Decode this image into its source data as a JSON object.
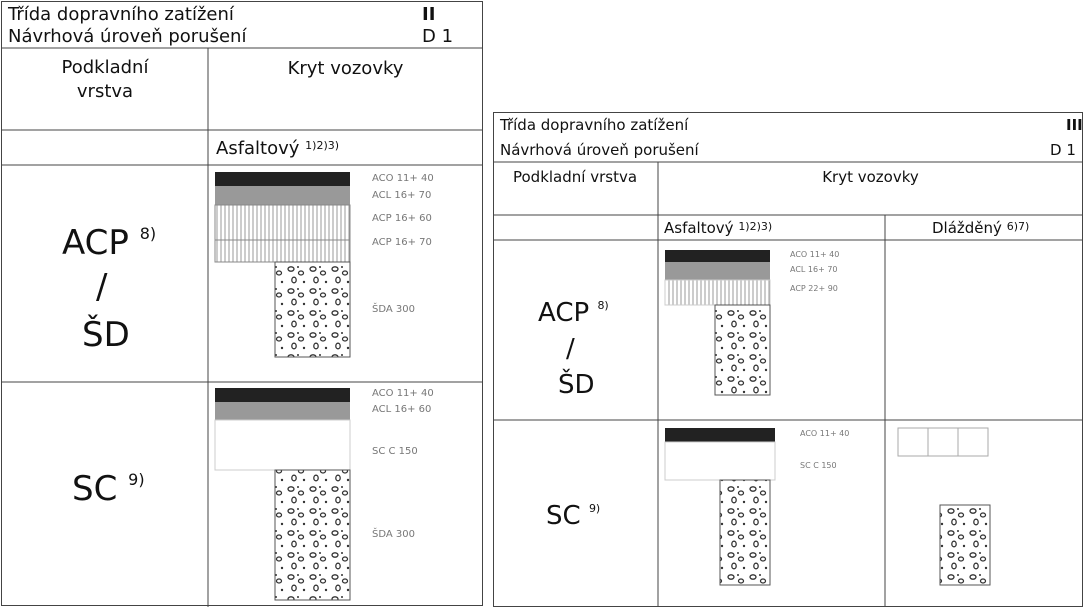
{
  "left_table": {
    "class_label": "Třída dopravního zatížení",
    "class_value": "II",
    "level_label": "Návrhová úroveň porušení",
    "level_value": "D 1",
    "col_headers": [
      "Podkladní vrstva",
      "Kryt vozovky"
    ],
    "surface": {
      "name": "Asfaltový",
      "note": "1)2)3)"
    },
    "rows": [
      {
        "base": "ACP",
        "base_note": "8)",
        "slash": "/",
        "base2": "ŠD",
        "layers": [
          "ACO 11+ 40",
          "ACL 16+ 70",
          "ACP 16+ 60",
          "ACP 16+ 70",
          "ŠDA 300"
        ]
      },
      {
        "base": "SC",
        "base_note": "9)",
        "layers": [
          "ACO 11+ 40",
          "ACL 16+ 60",
          "SC C 150",
          "ŠDA 300"
        ]
      }
    ]
  },
  "right_table": {
    "class_label": "Třída dopravního zatížení",
    "class_value": "III",
    "level_label": "Návrhová úroveň porušení",
    "level_value": "D 1",
    "col_headers": [
      "Podkladní vrstva",
      "Kryt vozovky"
    ],
    "surfaces": [
      {
        "name": "Asfaltový",
        "note": "1)2)3)"
      },
      {
        "name": "Dlážděný",
        "note": "6)7)"
      }
    ],
    "rows": [
      {
        "base": "ACP",
        "base_note": "8)",
        "slash": "/",
        "base2": "ŠD",
        "layers": [
          "ACO 11+ 40",
          "ACL 16+ 70",
          "ACP 22+ 90"
        ]
      },
      {
        "base": "SC",
        "base_note": "9)",
        "layers": [
          "ACO 11+ 40",
          "SC C 150"
        ]
      }
    ]
  }
}
